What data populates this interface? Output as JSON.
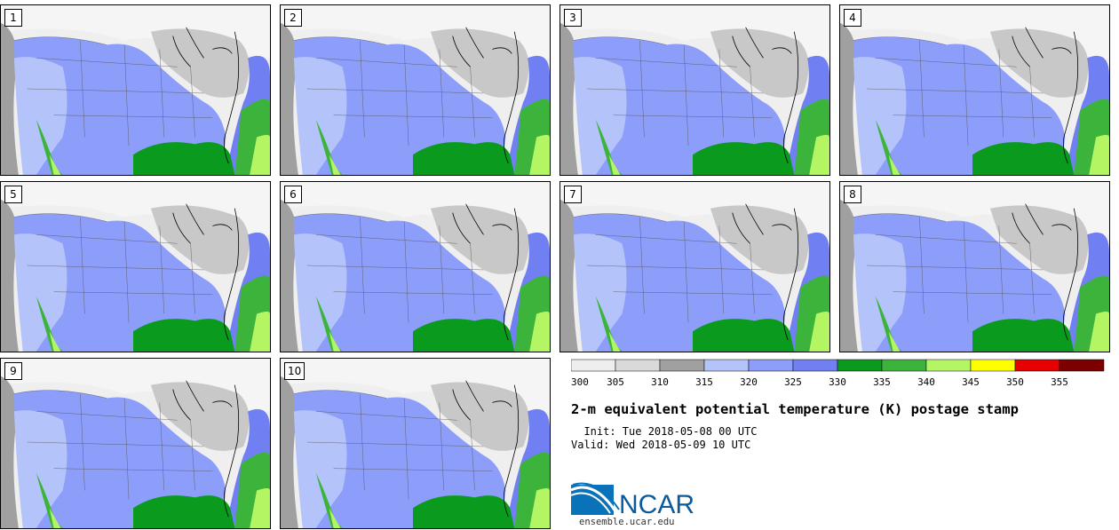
{
  "panels": [
    {
      "label": "1"
    },
    {
      "label": "2"
    },
    {
      "label": "3"
    },
    {
      "label": "4"
    },
    {
      "label": "5"
    },
    {
      "label": "6"
    },
    {
      "label": "7"
    },
    {
      "label": "8"
    },
    {
      "label": "9"
    },
    {
      "label": "10"
    }
  ],
  "colorbar": {
    "colors": [
      "#eeeeee",
      "#d9d9d9",
      "#a0a0a0",
      "#b4c3fa",
      "#8c9dfa",
      "#7080f2",
      "#0a9a1e",
      "#3cb43c",
      "#b4f564",
      "#ffff00",
      "#e60000",
      "#7d0000"
    ],
    "ticks": [
      "300",
      "305",
      "310",
      "315",
      "320",
      "325",
      "330",
      "335",
      "340",
      "345",
      "350",
      "355"
    ],
    "min": 300,
    "max": 360,
    "step": 5
  },
  "title": "2-m equivalent potential temperature (K) postage stamp",
  "init": "  Init: Tue 2018-05-08 00 UTC",
  "valid": "Valid: Wed 2018-05-09 10 UTC",
  "logo": {
    "text": "NCAR",
    "brand_color": "#0a5a9c"
  },
  "site": "ensemble.ucar.edu"
}
